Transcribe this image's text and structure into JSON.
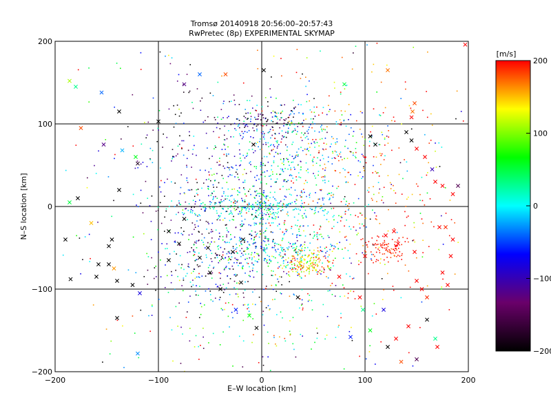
{
  "chart_data": {
    "type": "scatter",
    "title": "Tromsø 20140918 20:56:00–20:57:43",
    "subtitle": "RwPretec (8p) EXPERIMENTAL SKYMAP",
    "xlabel": "E–W location [km]",
    "ylabel": "N–S location [km]",
    "xlim": [
      -200,
      200
    ],
    "ylim": [
      -200,
      200
    ],
    "xticks": [
      "−200",
      "−100",
      "0",
      "100",
      "200"
    ],
    "yticks": [
      "−200",
      "−100",
      "0",
      "100",
      "200"
    ],
    "grid": true,
    "colorbar": {
      "label": "[m/s]",
      "range": [
        -200,
        200
      ],
      "ticks": [
        "200",
        "100",
        "0",
        "−100",
        "−200"
      ],
      "colormap": [
        "#000000",
        "#6a006a",
        "#0000ff",
        "#00ffff",
        "#00ff00",
        "#ffff00",
        "#ff0000"
      ]
    },
    "series": [
      {
        "marker": "x",
        "points": [
          [
            -186,
            152,
            110
          ],
          [
            -180,
            145,
            30
          ],
          [
            -155,
            138,
            -40
          ],
          [
            -138,
            115,
            -200
          ],
          [
            -75,
            148,
            -120
          ],
          [
            -60,
            160,
            -40
          ],
          [
            -35,
            160,
            180
          ],
          [
            2,
            165,
            -200
          ],
          [
            80,
            148,
            50
          ],
          [
            122,
            165,
            170
          ],
          [
            148,
            125,
            180
          ],
          [
            146,
            115,
            170
          ],
          [
            145,
            108,
            200
          ],
          [
            197,
            196,
            200
          ],
          [
            -175,
            95,
            180
          ],
          [
            -100,
            103,
            -200
          ],
          [
            -8,
            75,
            -200
          ],
          [
            -153,
            75,
            -120
          ],
          [
            -135,
            68,
            -20
          ],
          [
            -122,
            60,
            60
          ],
          [
            -120,
            52,
            -180
          ],
          [
            -178,
            10,
            -200
          ],
          [
            -186,
            5,
            50
          ],
          [
            -138,
            20,
            -200
          ],
          [
            -190,
            -40,
            -200
          ],
          [
            -165,
            -20,
            150
          ],
          [
            -145,
            -40,
            -200
          ],
          [
            -148,
            -48,
            -200
          ],
          [
            -158,
            -70,
            -200
          ],
          [
            -148,
            -70,
            -200
          ],
          [
            -143,
            -75,
            160
          ],
          [
            -160,
            -85,
            -200
          ],
          [
            -140,
            -90,
            -200
          ],
          [
            -185,
            -88,
            -200
          ],
          [
            -125,
            -95,
            -200
          ],
          [
            -118,
            -105,
            -80
          ],
          [
            -140,
            -135,
            -200
          ],
          [
            -120,
            -178,
            -30
          ],
          [
            -90,
            -30,
            -200
          ],
          [
            -80,
            -45,
            -200
          ],
          [
            -60,
            -62,
            -200
          ],
          [
            -50,
            -80,
            -200
          ],
          [
            -40,
            -100,
            -200
          ],
          [
            -20,
            -92,
            -200
          ],
          [
            -25,
            -125,
            -60
          ],
          [
            -12,
            -132,
            60
          ],
          [
            -5,
            -147,
            -200
          ],
          [
            35,
            -110,
            -200
          ],
          [
            45,
            -75,
            150
          ],
          [
            75,
            -85,
            200
          ],
          [
            95,
            -110,
            200
          ],
          [
            98,
            -125,
            30
          ],
          [
            118,
            -125,
            -80
          ],
          [
            142,
            -145,
            200
          ],
          [
            160,
            -137,
            -200
          ],
          [
            122,
            -170,
            -200
          ],
          [
            130,
            -160,
            200
          ],
          [
            135,
            -188,
            180
          ],
          [
            150,
            -185,
            -150
          ],
          [
            168,
            -160,
            30
          ],
          [
            170,
            -170,
            200
          ],
          [
            105,
            -150,
            60
          ],
          [
            86,
            -158,
            -60
          ],
          [
            150,
            -90,
            200
          ],
          [
            155,
            -100,
            200
          ],
          [
            160,
            -110,
            190
          ],
          [
            120,
            -35,
            200
          ],
          [
            148,
            -55,
            200
          ],
          [
            175,
            -80,
            200
          ],
          [
            180,
            -95,
            200
          ],
          [
            183,
            -60,
            200
          ],
          [
            185,
            -40,
            200
          ],
          [
            178,
            -25,
            190
          ],
          [
            168,
            30,
            200
          ],
          [
            175,
            25,
            200
          ],
          [
            185,
            15,
            200
          ],
          [
            190,
            25,
            -150
          ],
          [
            140,
            90,
            -200
          ],
          [
            145,
            80,
            -200
          ],
          [
            150,
            70,
            200
          ],
          [
            158,
            60,
            200
          ],
          [
            165,
            45,
            -100
          ],
          [
            172,
            -25,
            200
          ],
          [
            105,
            85,
            -200
          ],
          [
            110,
            75,
            -200
          ],
          [
            128,
            -30,
            200
          ],
          [
            132,
            -45,
            200
          ],
          [
            100,
            -60,
            200
          ],
          [
            -75,
            -15,
            -200
          ],
          [
            -90,
            -65,
            -200
          ],
          [
            -52,
            -50,
            -200
          ],
          [
            -28,
            -55,
            -200
          ],
          [
            -18,
            -40,
            -200
          ]
        ]
      },
      {
        "marker": "dot",
        "clusters": [
          {
            "cx": 30,
            "cy": 60,
            "sx": 40,
            "sy": 35,
            "n": 420,
            "v": -10,
            "vs": 60
          },
          {
            "cx": 0,
            "cy": 0,
            "sx": 40,
            "sy": 12,
            "n": 320,
            "v": 5,
            "vs": 40
          },
          {
            "cx": 15,
            "cy": -50,
            "sx": 30,
            "sy": 15,
            "n": 260,
            "v": 0,
            "vs": 50
          },
          {
            "cx": 42,
            "cy": -68,
            "sx": 12,
            "sy": 8,
            "n": 160,
            "v": 150,
            "vs": 40
          },
          {
            "cx": 120,
            "cy": -50,
            "sx": 10,
            "sy": 8,
            "n": 90,
            "v": 195,
            "vs": 10
          },
          {
            "cx": 90,
            "cy": 20,
            "sx": 50,
            "sy": 80,
            "n": 350,
            "v": 180,
            "vs": 40
          },
          {
            "cx": -50,
            "cy": 30,
            "sx": 40,
            "sy": 60,
            "n": 300,
            "v": -120,
            "vs": 80
          },
          {
            "cx": -40,
            "cy": -60,
            "sx": 35,
            "sy": 35,
            "n": 280,
            "v": -80,
            "vs": 120
          },
          {
            "cx": 0,
            "cy": -130,
            "sx": 50,
            "sy": 40,
            "n": 140,
            "v": 40,
            "vs": 100
          },
          {
            "cx": 0,
            "cy": 100,
            "sx": 20,
            "sy": 10,
            "n": 110,
            "v": -150,
            "vs": 80
          },
          {
            "cx": 0,
            "cy": 0,
            "sx": 160,
            "sy": 140,
            "n": 380,
            "v": 0,
            "vs": 170
          }
        ]
      }
    ]
  }
}
